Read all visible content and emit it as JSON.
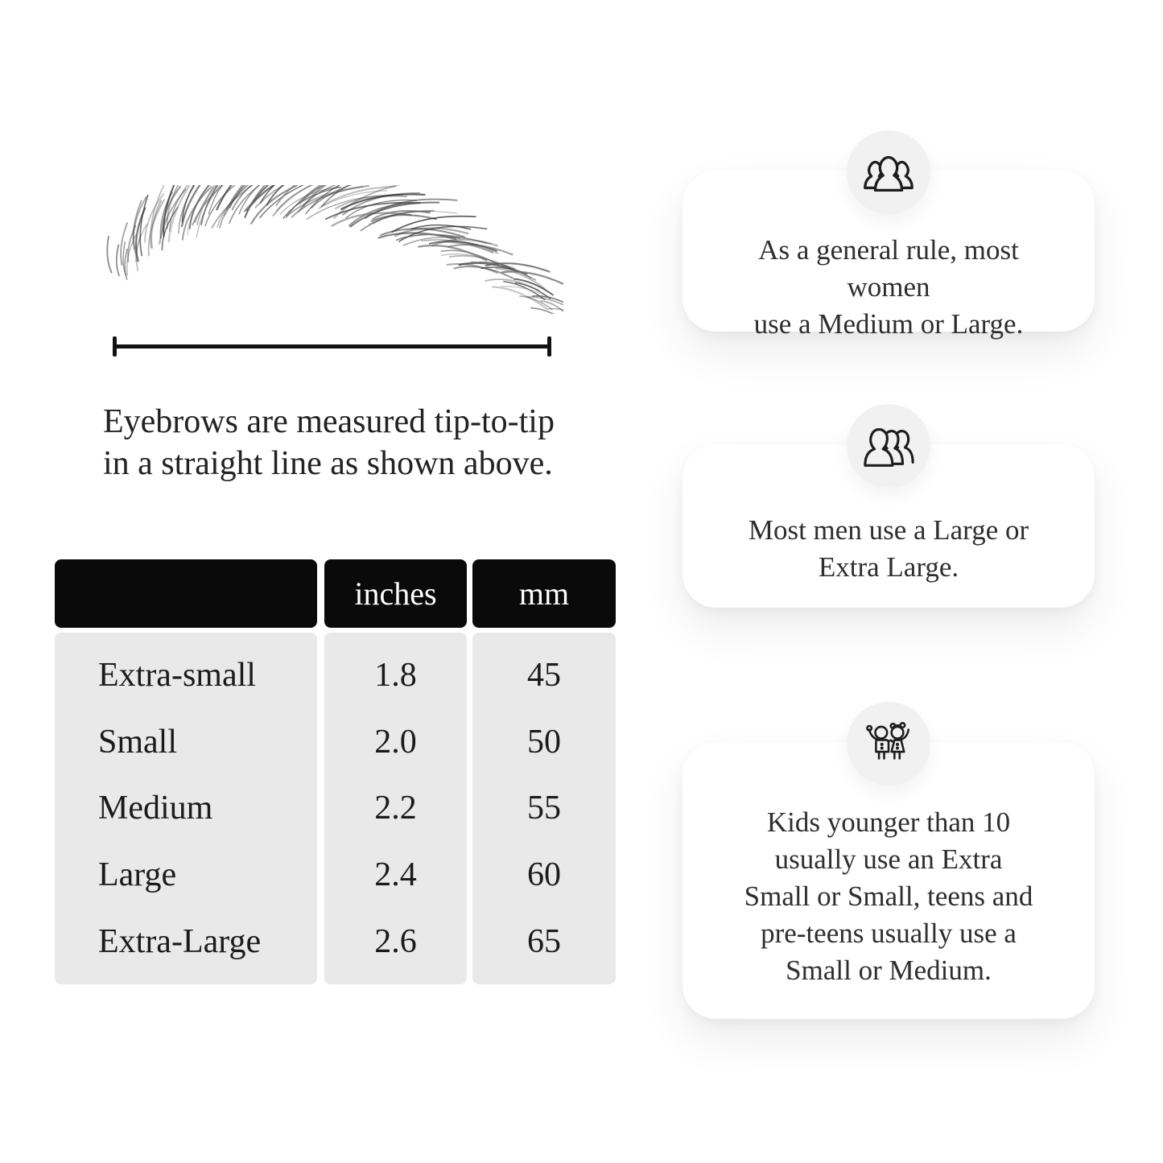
{
  "figure": {
    "caption": "Eyebrows are measured tip-to-tip\nin a straight line as shown above."
  },
  "table": {
    "headers": {
      "size": "",
      "inches": "inches",
      "mm": "mm"
    },
    "rows": [
      {
        "label": "Extra-small",
        "inches": "1.8",
        "mm": "45"
      },
      {
        "label": "Small",
        "inches": "2.0",
        "mm": "50"
      },
      {
        "label": "Medium",
        "inches": "2.2",
        "mm": "55"
      },
      {
        "label": "Large",
        "inches": "2.4",
        "mm": "60"
      },
      {
        "label": "Extra-Large",
        "inches": "2.6",
        "mm": "65"
      }
    ]
  },
  "cards": [
    {
      "icon": "women-group-icon",
      "text": "As a general rule, most women\nuse a Medium or Large."
    },
    {
      "icon": "men-group-icon",
      "text": "Most men use a Large or\nExtra Large."
    },
    {
      "icon": "kids-icon",
      "text": "Kids younger than 10\nusually use an Extra\nSmall or Small, teens and\npre-teens usually use a\nSmall or Medium."
    }
  ],
  "colors": {
    "background": "#ffffff",
    "table_header_bg": "#0a0a0a",
    "table_header_text": "#ffffff",
    "table_body_bg": "#e9e9e9",
    "body_text": "#1f1f1f",
    "card_bg": "#ffffff",
    "icon_circle_bg": "#f1f1f1",
    "icon_stroke": "#1d1d1d",
    "measure_line": "#121212"
  },
  "chart_data": {
    "type": "table",
    "title": "Eyebrow size chart",
    "columns": [
      "",
      "inches",
      "mm"
    ],
    "rows": [
      [
        "Extra-small",
        1.8,
        45
      ],
      [
        "Small",
        2.0,
        50
      ],
      [
        "Medium",
        2.2,
        55
      ],
      [
        "Large",
        2.4,
        60
      ],
      [
        "Extra-Large",
        2.6,
        65
      ]
    ],
    "notes": [
      "As a general rule, most women use a Medium or Large.",
      "Most men use a Large or Extra Large.",
      "Kids younger than 10 usually use an Extra Small or Small, teens and pre-teens usually use a Small or Medium."
    ]
  }
}
